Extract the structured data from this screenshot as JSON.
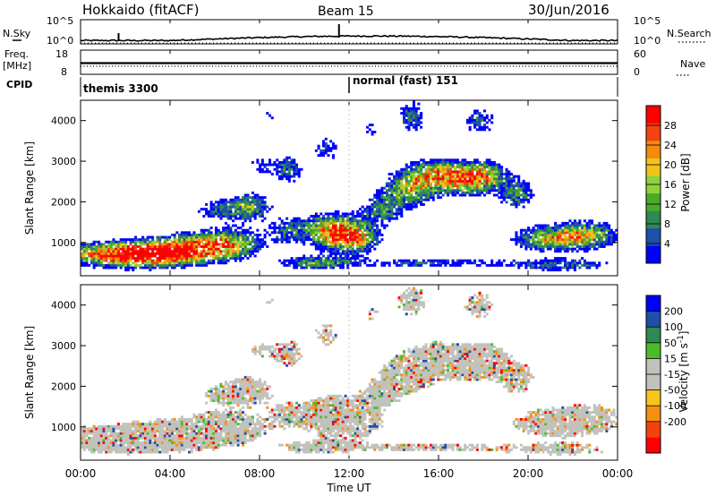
{
  "header": {
    "station": "Hokkaido (fitACF)",
    "beam": "Beam 15",
    "date": "30/Jun/2016"
  },
  "left_labels": {
    "nsky": "N.Sky",
    "freq": "Freq.",
    "freq_unit": "[MHz]",
    "cpid": "CPID"
  },
  "right_labels": {
    "nsearch": "N.Search",
    "nave": "Nave"
  },
  "cpid_modes": [
    "themis 3300",
    "normal (fast) 151"
  ],
  "colors": {
    "power": [
      "#0000ff",
      "#1f4faa",
      "#2e8a52",
      "#4caa2a",
      "#8fd23c",
      "#f2c41a",
      "#f58a0c",
      "#f24410",
      "#ff0000"
    ],
    "velocity": [
      "#ff0000",
      "#f5420c",
      "#f5900f",
      "#f5c51a",
      "#c2c2bd",
      "#c2c2bd",
      "#4cbb2a",
      "#2e8a52",
      "#1f4faa",
      "#0000ff"
    ],
    "grey": "#c2c2bd"
  },
  "chart_data": [
    {
      "name": "noise",
      "type": "line",
      "yticks_left": [
        "10^5",
        "10^0"
      ],
      "yticks_right": [
        "10^5",
        "10^0"
      ]
    },
    {
      "name": "freq",
      "type": "scatter",
      "yticks_left": [
        "18",
        "8"
      ],
      "yticks_right": [
        "60",
        "0"
      ]
    },
    {
      "name": "power",
      "type": "heatmap",
      "ylabel": "Slant Range [km]",
      "yticks": [
        "4000",
        "3000",
        "2000",
        "1000"
      ],
      "ylim": [
        180,
        4500
      ],
      "colorbar_label": "Power [dB]",
      "colorbar_ticks": [
        "28",
        "24",
        "20",
        "16",
        "12",
        "8",
        "4"
      ],
      "colorbar_range": [
        0,
        32
      ]
    },
    {
      "name": "velocity",
      "type": "heatmap",
      "ylabel": "Slant Range [km]",
      "yticks": [
        "4000",
        "3000",
        "2000",
        "1000"
      ],
      "ylim": [
        180,
        4500
      ],
      "colorbar_label": "Velocity [m s^-1]",
      "colorbar_ticks": [
        "200",
        "100",
        "50",
        "15",
        "-15",
        "-50",
        "-100",
        "-200"
      ],
      "xlabel": "Time UT",
      "xticks": [
        "00:00",
        "04:00",
        "08:00",
        "12:00",
        "16:00",
        "20:00",
        "00:00"
      ],
      "xlim": [
        0,
        24
      ]
    }
  ]
}
